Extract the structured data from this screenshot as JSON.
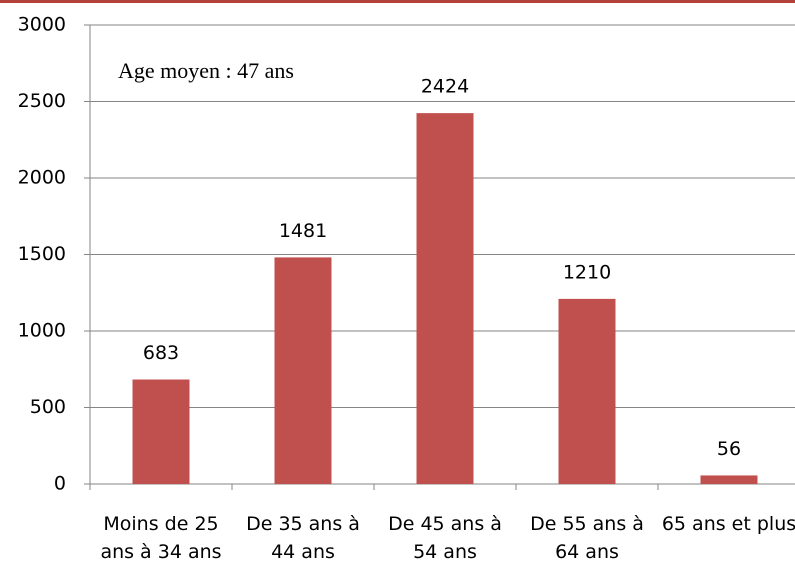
{
  "chart_data": {
    "type": "bar",
    "annotation": "Age moyen : 47 ans",
    "categories": [
      "Moins de 25 ans à 34 ans",
      "De 35 ans à 44 ans",
      "De 45 ans à 54 ans",
      "De 55 ans à 64 ans",
      "65 ans et plus"
    ],
    "values": [
      683,
      1481,
      2424,
      1210,
      56
    ],
    "color": "#c0504d",
    "ylim": [
      0,
      3000
    ],
    "yticks": [
      0,
      500,
      1000,
      1500,
      2000,
      2500,
      3000
    ],
    "grid": true
  }
}
